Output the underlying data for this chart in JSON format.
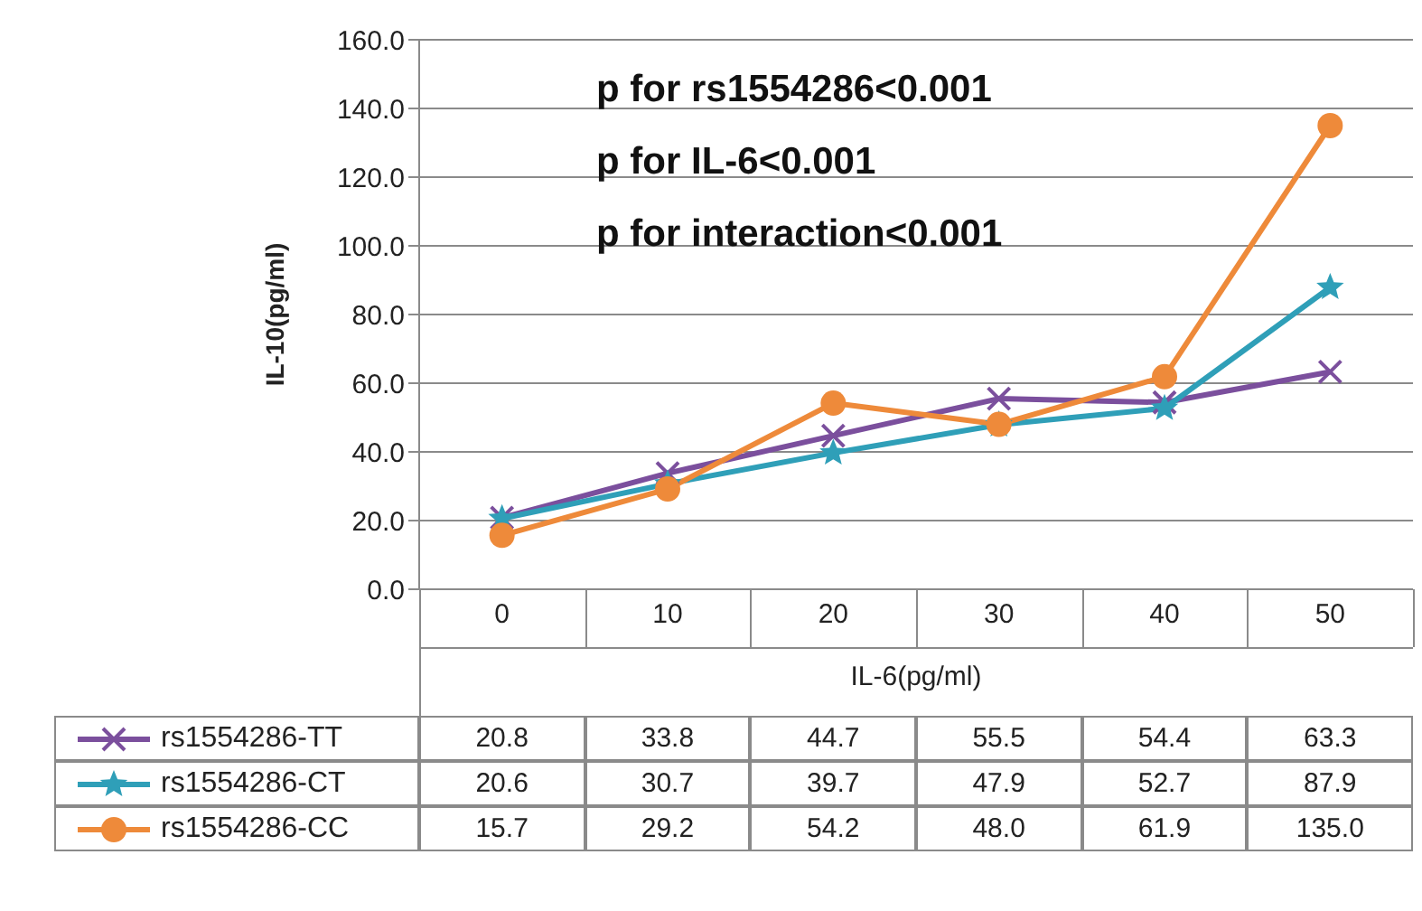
{
  "chart_data": {
    "type": "line",
    "xlabel": "IL-6(pg/ml)",
    "ylabel": "IL-10(pg/ml)",
    "categories": [
      "0",
      "10",
      "20",
      "30",
      "40",
      "50"
    ],
    "series": [
      {
        "name": "rs1554286-TT",
        "color": "#7b4f9d",
        "marker": "cross",
        "values": [
          20.8,
          33.8,
          44.7,
          55.5,
          54.4,
          63.3
        ],
        "value_labels": [
          "20.8",
          "33.8",
          "44.7",
          "55.5",
          "54.4",
          "63.3"
        ]
      },
      {
        "name": "rs1554286-CT",
        "color": "#2f9fb8",
        "marker": "star",
        "values": [
          20.6,
          30.7,
          39.7,
          47.9,
          52.7,
          87.9
        ],
        "value_labels": [
          "20.6",
          "30.7",
          "39.7",
          "47.9",
          "52.7",
          "87.9"
        ]
      },
      {
        "name": "rs1554286-CC",
        "color": "#ee8a3a",
        "marker": "circle",
        "values": [
          15.7,
          29.2,
          54.2,
          48.0,
          61.9,
          135.0
        ],
        "value_labels": [
          "15.7",
          "29.2",
          "54.2",
          "48.0",
          "61.9",
          "135.0"
        ]
      }
    ],
    "ylim": [
      0,
      160
    ],
    "yticks": [
      {
        "value": 0,
        "label": "0.0"
      },
      {
        "value": 20,
        "label": "20.0"
      },
      {
        "value": 40,
        "label": "40.0"
      },
      {
        "value": 60,
        "label": "60.0"
      },
      {
        "value": 80,
        "label": "80.0"
      },
      {
        "value": 100,
        "label": "100.0"
      },
      {
        "value": 120,
        "label": "120.0"
      },
      {
        "value": 140,
        "label": "140.0"
      },
      {
        "value": 160,
        "label": "160.0"
      }
    ],
    "grid": "y",
    "legend": "bottom",
    "line_style": "solid",
    "annotations": [
      "p for rs1554286<0.001",
      "p for IL-6<0.001",
      "p for interaction<0.001"
    ]
  }
}
